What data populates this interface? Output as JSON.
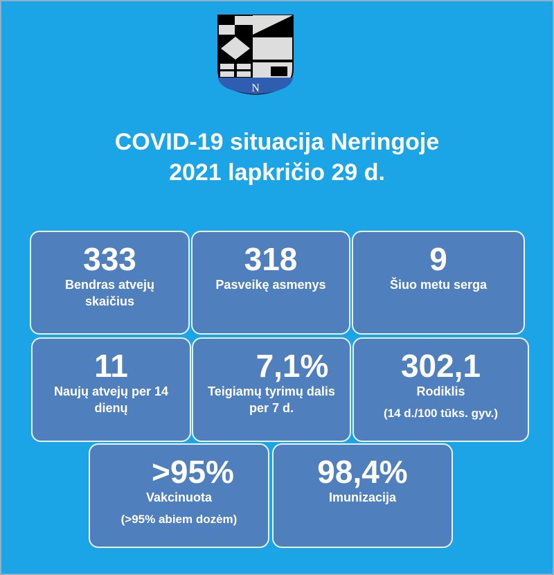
{
  "title_line1": "COVID-19 situacija Neringoje",
  "title_line2": "2021 lapkričio 29 d.",
  "crest_letter": "N",
  "cards": [
    {
      "value": "333",
      "label": "Bendras atvejų skaičius"
    },
    {
      "value": "318",
      "label": "Pasveikę asmenys"
    },
    {
      "value": "9",
      "label": "Šiuo metu serga"
    },
    {
      "value": "11",
      "label": "Naujų atvejų per 14 dienų"
    },
    {
      "value": "7,1%",
      "label": "Teigiamų tyrimų dalis per 7 d."
    },
    {
      "value": "302,1",
      "label": "Rodiklis",
      "note": "(14 d./100 tūks. gyv.)"
    },
    {
      "value": ">95%",
      "label": "Vakcinuota",
      "note": "(>95% abiem dozėm)"
    },
    {
      "value": "98,4%",
      "label": "Imunizacija"
    }
  ]
}
